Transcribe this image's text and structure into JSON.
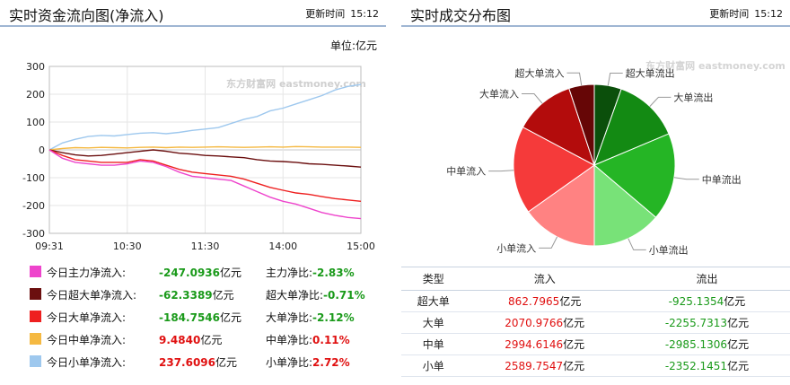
{
  "left": {
    "title": "实时资金流向图(净流入)",
    "update_label": "更新时间",
    "update_time": "15:12",
    "unit": "单位:亿元",
    "watermark": "东方财富网 eastmoney.com",
    "chart_data": {
      "type": "line",
      "ylim": [
        -300,
        300
      ],
      "yticks": [
        "300",
        "200",
        "100",
        "0",
        "-100",
        "-200",
        "-300"
      ],
      "xticks": [
        "09:31",
        "10:30",
        "11:30",
        "14:00",
        "15:00"
      ],
      "x_points": 25,
      "series": [
        {
          "name": "今日小单净流入",
          "color": "#9ec8ee",
          "values": [
            0,
            25,
            38,
            48,
            52,
            50,
            55,
            60,
            62,
            58,
            63,
            70,
            75,
            80,
            95,
            110,
            120,
            140,
            150,
            165,
            180,
            195,
            215,
            228,
            235
          ]
        },
        {
          "name": "今日中单净流入",
          "color": "#f5b942",
          "values": [
            0,
            5,
            8,
            7,
            9,
            8,
            7,
            9,
            10,
            8,
            10,
            9,
            10,
            11,
            10,
            9,
            10,
            11,
            10,
            12,
            11,
            10,
            10,
            10,
            9
          ]
        },
        {
          "name": "今日超大单净流入",
          "color": "#6b0f0f",
          "values": [
            0,
            -10,
            -18,
            -22,
            -20,
            -15,
            -10,
            -5,
            0,
            -5,
            -12,
            -15,
            -20,
            -22,
            -25,
            -28,
            -35,
            -40,
            -42,
            -45,
            -50,
            -52,
            -55,
            -58,
            -62
          ]
        },
        {
          "name": "今日大单净流入",
          "color": "#ee2020",
          "values": [
            0,
            -20,
            -35,
            -40,
            -45,
            -45,
            -45,
            -35,
            -40,
            -55,
            -70,
            -80,
            -85,
            -90,
            -95,
            -105,
            -120,
            -135,
            -145,
            -155,
            -160,
            -168,
            -175,
            -180,
            -185
          ]
        },
        {
          "name": "今日主力净流入",
          "color": "#ee44cc",
          "values": [
            0,
            -30,
            -45,
            -50,
            -55,
            -55,
            -50,
            -40,
            -45,
            -60,
            -80,
            -95,
            -100,
            -105,
            -110,
            -130,
            -150,
            -170,
            -185,
            -195,
            -210,
            -225,
            -235,
            -243,
            -247
          ]
        }
      ]
    },
    "legend": [
      {
        "label": "今日主力净流入:",
        "value": "-247.0936",
        "unit": "亿元",
        "ratio_label": "主力净比:",
        "ratio": "-2.83%",
        "color": "#ee44cc",
        "sign": "neg"
      },
      {
        "label": "今日超大单净流入:",
        "value": "-62.3389",
        "unit": "亿元",
        "ratio_label": "超大单净比:",
        "ratio": "-0.71%",
        "color": "#6b0f0f",
        "sign": "neg"
      },
      {
        "label": "今日大单净流入:",
        "value": "-184.7546",
        "unit": "亿元",
        "ratio_label": "大单净比:",
        "ratio": "-2.12%",
        "color": "#ee2020",
        "sign": "neg"
      },
      {
        "label": "今日中单净流入:",
        "value": "9.4840",
        "unit": "亿元",
        "ratio_label": "中单净比:",
        "ratio": "0.11%",
        "color": "#f5b942",
        "sign": "pos"
      },
      {
        "label": "今日小单净流入:",
        "value": "237.6096",
        "unit": "亿元",
        "ratio_label": "小单净比:",
        "ratio": "2.72%",
        "color": "#9ec8ee",
        "sign": "pos"
      }
    ]
  },
  "right": {
    "title": "实时成交分布图",
    "update_label": "更新时间",
    "update_time": "15:12",
    "watermark": "东方财富网 eastmoney.com",
    "chart_data": {
      "type": "pie",
      "slices": [
        {
          "label": "超大单流出",
          "value": 925.1354,
          "color": "#0b4f0b",
          "side": "right"
        },
        {
          "label": "大单流出",
          "value": 2255.7313,
          "color": "#138a13",
          "side": "right"
        },
        {
          "label": "中单流出",
          "value": 2985.1306,
          "color": "#25b525",
          "side": "right"
        },
        {
          "label": "小单流出",
          "value": 2352.1451,
          "color": "#78e278",
          "side": "right"
        },
        {
          "label": "小单流入",
          "value": 2589.7547,
          "color": "#ff8282",
          "side": "left"
        },
        {
          "label": "中单流入",
          "value": 2994.6146,
          "color": "#f53a3a",
          "side": "left"
        },
        {
          "label": "大单流入",
          "value": 2070.9766,
          "color": "#b30c0c",
          "side": "left"
        },
        {
          "label": "超大单流入",
          "value": 862.7965,
          "color": "#660606",
          "side": "left"
        }
      ]
    },
    "table": {
      "headers": [
        "类型",
        "流入",
        "流出"
      ],
      "unit": "亿元",
      "rows": [
        {
          "type": "超大单",
          "in": "862.7965",
          "out": "-925.1354"
        },
        {
          "type": "大单",
          "in": "2070.9766",
          "out": "-2255.7313"
        },
        {
          "type": "中单",
          "in": "2994.6146",
          "out": "-2985.1306"
        },
        {
          "type": "小单",
          "in": "2589.7547",
          "out": "-2352.1451"
        }
      ]
    }
  }
}
